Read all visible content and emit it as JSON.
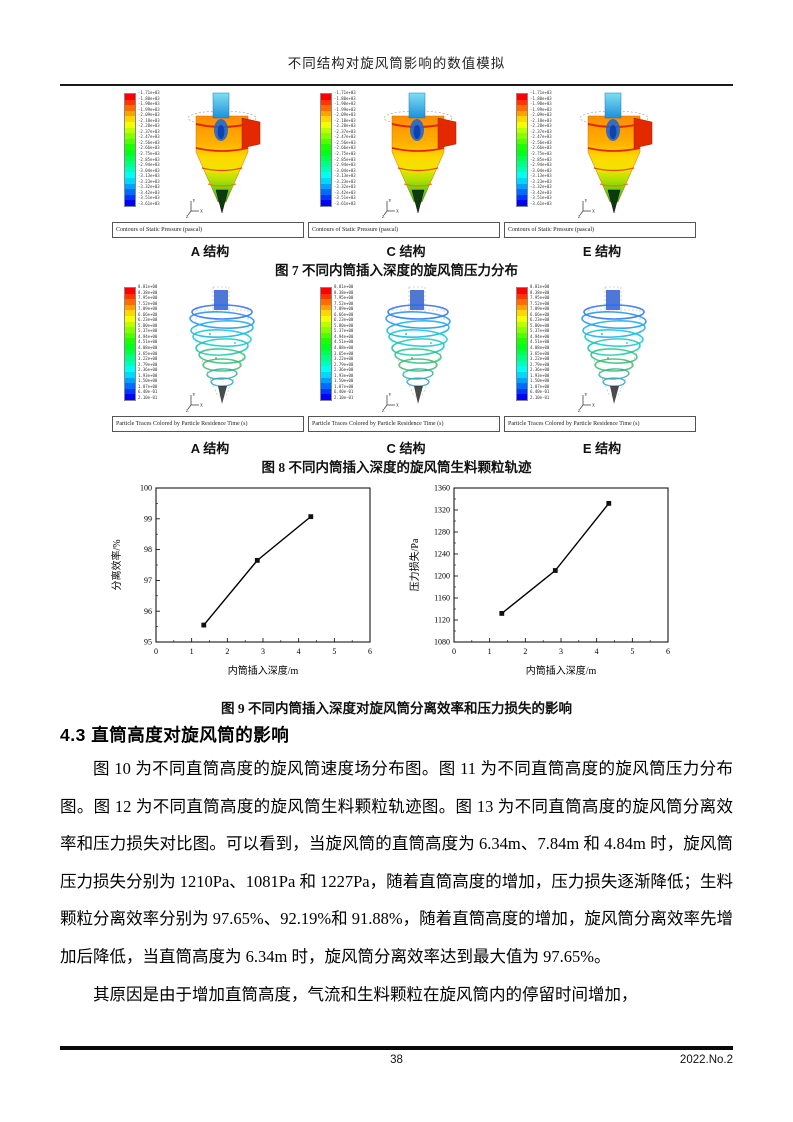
{
  "page": {
    "header_title": "不同结构对旋风筒影响的数值模拟",
    "footer": {
      "page_number": "38",
      "issue": "2022.No.2"
    }
  },
  "triad": {
    "y": "Y",
    "x": "X",
    "z": "Z"
  },
  "fig7": {
    "panel_labels": [
      "A 结构",
      "C 结构",
      "E 结构"
    ],
    "viewer_caption": "Contours of Static Pressure (pascal)",
    "colorbar_unit": "pascal",
    "colorbar_labels": [
      "-1.71e+03",
      "-1.80e+03",
      "-1.90e+03",
      "-1.99e+03",
      "-2.09e+03",
      "-2.18e+03",
      "-2.28e+03",
      "-2.37e+03",
      "-2.47e+03",
      "-2.56e+03",
      "-2.66e+03",
      "-2.75e+03",
      "-2.85e+03",
      "-2.94e+03",
      "-3.04e+03",
      "-3.13e+03",
      "-3.23e+03",
      "-3.32e+03",
      "-3.42e+03",
      "-3.51e+03",
      "-3.61e+03"
    ],
    "caption": "图 7 不同内筒插入深度的旋风筒压力分布"
  },
  "fig8": {
    "panel_labels": [
      "A 结构",
      "C 结构",
      "E 结构"
    ],
    "viewer_caption": "Particle Traces Colored by Particle Residence Time (s)",
    "colorbar_unit": "s",
    "colorbar_labels": [
      "8.81e+00",
      "8.38e+00",
      "7.95e+00",
      "7.52e+00",
      "7.09e+00",
      "6.66e+00",
      "6.23e+00",
      "5.80e+00",
      "5.37e+00",
      "4.94e+00",
      "4.51e+00",
      "4.08e+00",
      "3.65e+00",
      "3.22e+00",
      "2.79e+00",
      "2.36e+00",
      "1.93e+00",
      "1.50e+00",
      "1.07e+00",
      "6.40e-01",
      "2.10e-01"
    ],
    "caption": "图 8 不同内筒插入深度的旋风筒生料颗粒轨迹"
  },
  "fig9": {
    "caption": "图 9 不同内筒插入深度对旋风筒分离效率和压力损失的影响"
  },
  "chart_data": [
    {
      "type": "line",
      "title": "",
      "xlabel": "内筒插入深度/m",
      "ylabel": "分离效率/%",
      "xlim": [
        0,
        6
      ],
      "ylim": [
        95,
        100
      ],
      "xticks": [
        0,
        1,
        2,
        3,
        4,
        5,
        6
      ],
      "yticks": [
        95,
        96,
        97,
        98,
        99,
        100
      ],
      "x": [
        1.34,
        2.84,
        4.34
      ],
      "y": [
        95.55,
        97.65,
        99.07
      ],
      "marker": "square",
      "line_color": "#000000",
      "grid": false,
      "legend": "none"
    },
    {
      "type": "line",
      "title": "",
      "xlabel": "内筒插入深度/m",
      "ylabel": "压力损失/Pa",
      "xlim": [
        0,
        6
      ],
      "ylim": [
        1080,
        1360
      ],
      "xticks": [
        0,
        1,
        2,
        3,
        4,
        5,
        6
      ],
      "yticks": [
        1080,
        1120,
        1160,
        1200,
        1240,
        1280,
        1320,
        1360
      ],
      "x": [
        1.34,
        2.84,
        4.34
      ],
      "y": [
        1132,
        1210,
        1332
      ],
      "marker": "square",
      "line_color": "#000000",
      "grid": false,
      "legend": "none"
    }
  ],
  "section": {
    "heading": "4.3 直筒高度对旋风筒的影响",
    "paragraphs": [
      "图 10 为不同直筒高度的旋风筒速度场分布图。图 11 为不同直筒高度的旋风筒压力分布图。图 12 为不同直筒高度的旋风筒生料颗粒轨迹图。图 13 为不同直筒高度的旋风筒分离效率和压力损失对比图。可以看到，当旋风筒的直筒高度为 6.34m、7.84m 和 4.84m 时，旋风筒压力损失分别为 1210Pa、1081Pa 和 1227Pa，随着直筒高度的增加，压力损失逐渐降低；生料颗粒分离效率分别为 97.65%、92.19%和 91.88%，随着直筒高度的增加，旋风筒分离效率先增加后降低，当直筒高度为 6.34m 时，旋风筒分离效率达到最大值为 97.65%。",
      "其原因是由于增加直筒高度，气流和生料颗粒在旋风筒内的停留时间增加，"
    ]
  },
  "colors": {
    "page_bg": "#ffffff",
    "text": "#111111",
    "inlet_red": "#e42800",
    "chart_line": "#000000"
  }
}
